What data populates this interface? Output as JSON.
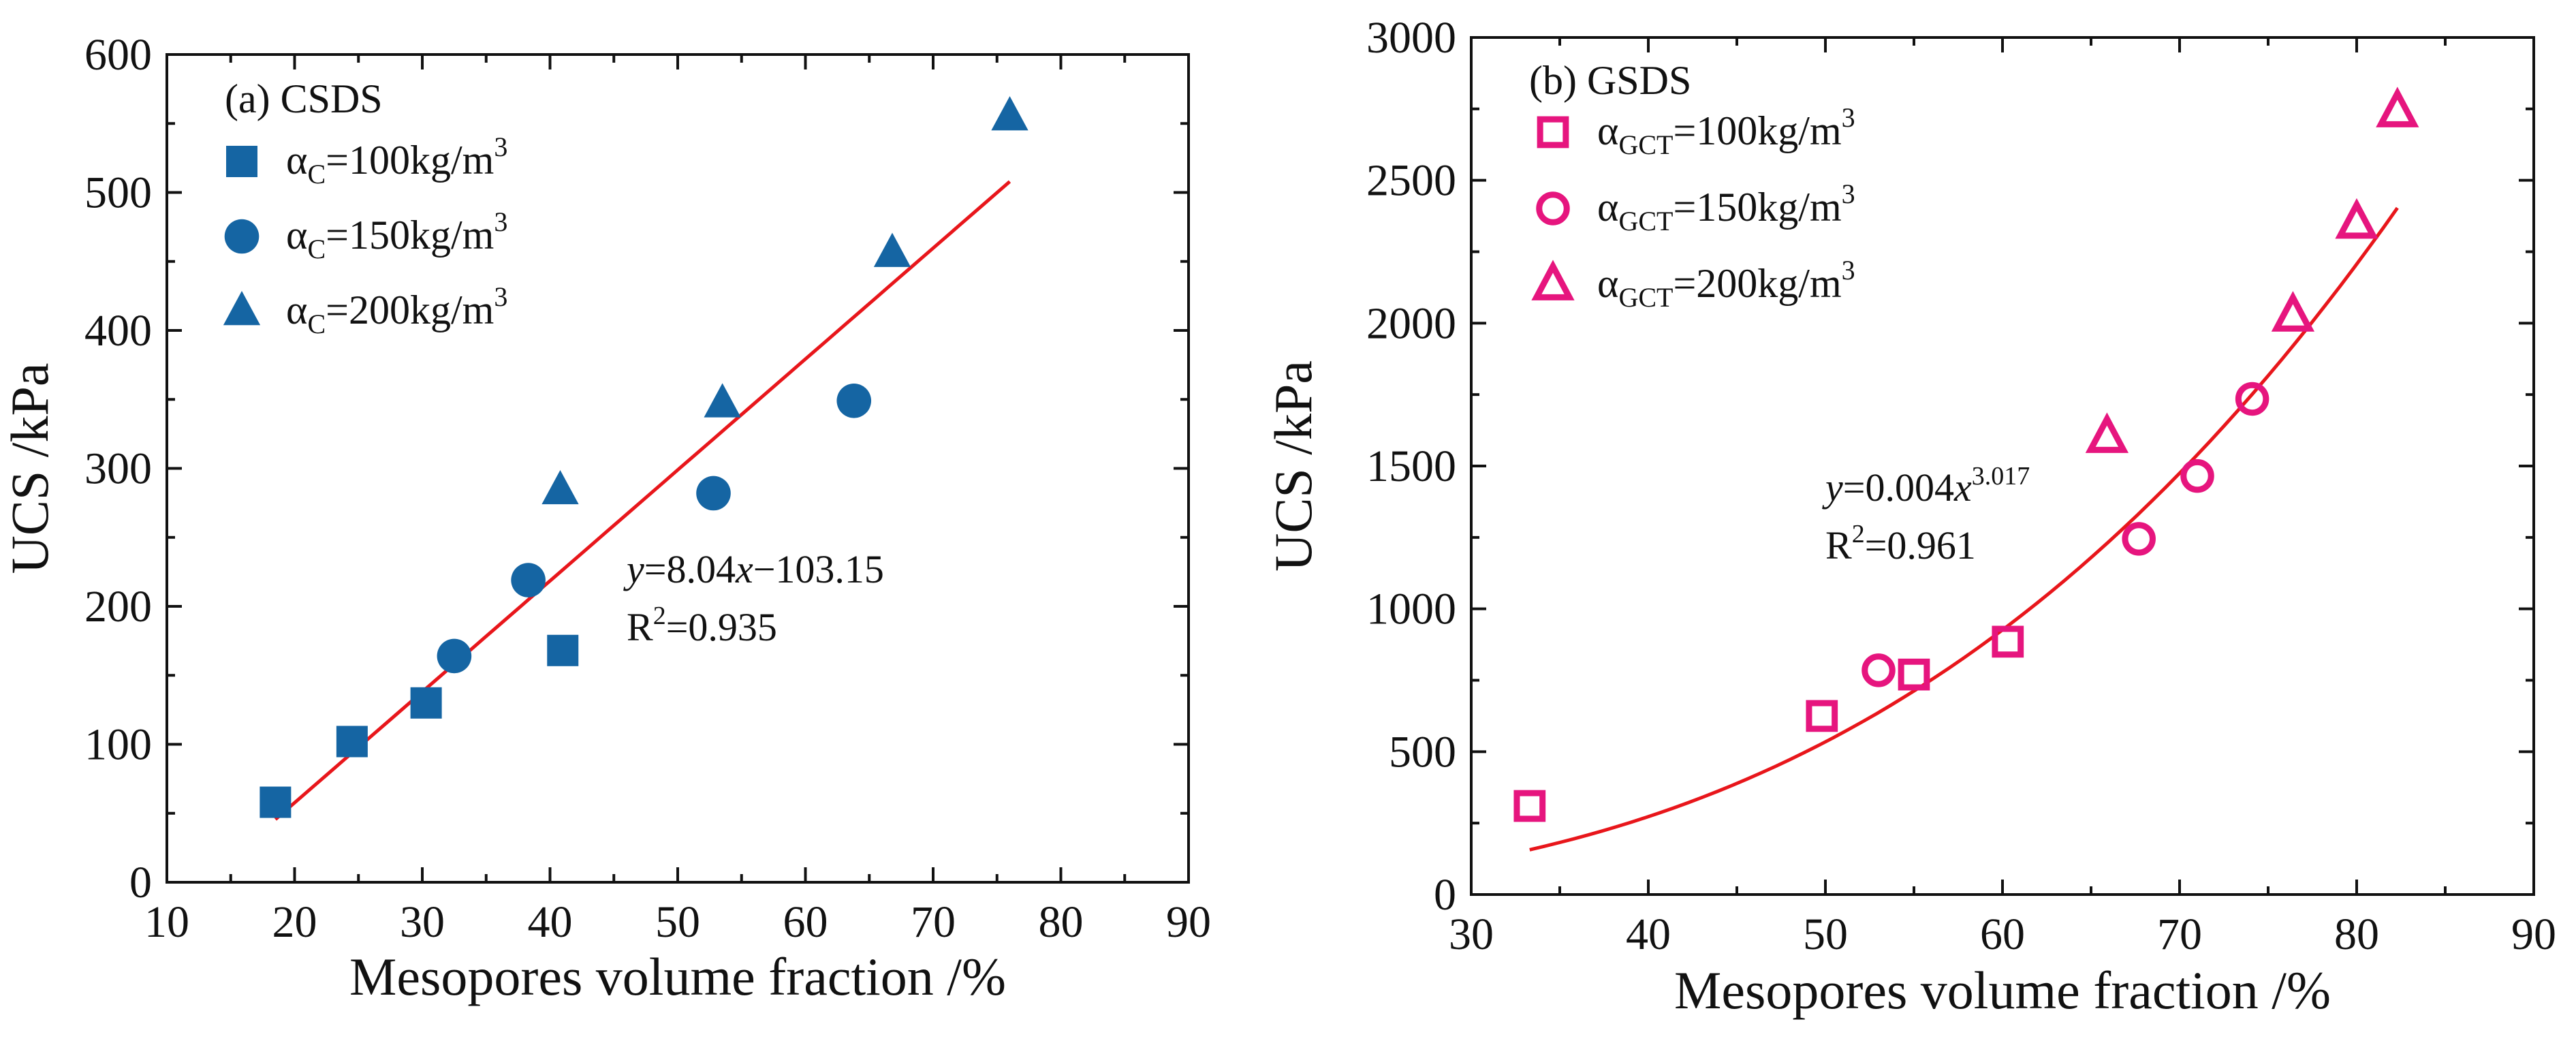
{
  "chart_data": [
    {
      "id": "a",
      "type": "scatter",
      "panel_label": "(a) CSDS",
      "xlabel": "Mesopores volume fraction /%",
      "ylabel": "UCS /kPa",
      "xlim": [
        10,
        90
      ],
      "ylim": [
        0,
        600
      ],
      "xticks": [
        10,
        20,
        30,
        40,
        50,
        60,
        70,
        80,
        90
      ],
      "yticks": [
        0,
        100,
        200,
        300,
        400,
        500,
        600
      ],
      "marker_color": "#1565A3",
      "fit_color": "#E8161B",
      "legend_position": "top-left",
      "series": [
        {
          "name": "αC=100kg/m3",
          "alpha_symbol": "α",
          "subscript": "C",
          "value_text": "=100kg/m",
          "superscript": "3",
          "marker": "square",
          "points": [
            [
              18.5,
              58
            ],
            [
              24.5,
              102
            ],
            [
              30.3,
              130
            ],
            [
              41.0,
              168
            ]
          ]
        },
        {
          "name": "αC=150kg/m3",
          "alpha_symbol": "α",
          "subscript": "C",
          "value_text": "=150kg/m",
          "superscript": "3",
          "marker": "circle",
          "points": [
            [
              32.5,
              164
            ],
            [
              38.3,
              219
            ],
            [
              52.8,
              282
            ],
            [
              63.8,
              349
            ]
          ]
        },
        {
          "name": "αC=200kg/m3",
          "alpha_symbol": "α",
          "subscript": "C",
          "value_text": "=200kg/m",
          "superscript": "3",
          "marker": "triangle",
          "points": [
            [
              40.8,
              284
            ],
            [
              53.5,
              347
            ],
            [
              66.8,
              456
            ],
            [
              76.0,
              555
            ]
          ]
        }
      ],
      "fit": {
        "kind": "linear",
        "a": 8.04,
        "b": -103.15,
        "x_range": [
          18.5,
          76.0
        ]
      },
      "annotation": {
        "eq_y": "y",
        "eq_rest1": "=8.04",
        "eq_x": "x",
        "eq_rest2": "−103.15",
        "r2_R": "R",
        "r2_sup": "2",
        "r2_rest": "=0.935"
      }
    },
    {
      "id": "b",
      "type": "scatter",
      "panel_label": "(b) GSDS",
      "xlabel": "Mesopores volume fraction /%",
      "ylabel": "UCS /kPa",
      "xlim": [
        30,
        90
      ],
      "ylim": [
        0,
        3000
      ],
      "xticks": [
        30,
        40,
        50,
        60,
        70,
        80,
        90
      ],
      "yticks": [
        0,
        500,
        1000,
        1500,
        2000,
        2500,
        3000
      ],
      "marker_color": "#E6157E",
      "fit_color": "#E8161B",
      "legend_position": "top-left",
      "series": [
        {
          "name": "αGCT=100kg/m3",
          "alpha_symbol": "α",
          "subscript": "GCT",
          "value_text": "=100kg/m",
          "superscript": "3",
          "marker": "square-open",
          "points": [
            [
              33.3,
              310
            ],
            [
              49.8,
              625
            ],
            [
              55.0,
              770
            ],
            [
              60.3,
              885
            ]
          ]
        },
        {
          "name": "αGCT=150kg/m3",
          "alpha_symbol": "α",
          "subscript": "GCT",
          "value_text": "=150kg/m",
          "superscript": "3",
          "marker": "circle-open",
          "points": [
            [
              53.0,
              785
            ],
            [
              67.7,
              1245
            ],
            [
              71.0,
              1465
            ],
            [
              74.1,
              1735
            ]
          ]
        },
        {
          "name": "αGCT=200kg/m3",
          "alpha_symbol": "α",
          "subscript": "GCT",
          "value_text": "=200kg/m",
          "superscript": "3",
          "marker": "triangle-open",
          "points": [
            [
              65.9,
              1600
            ],
            [
              76.4,
              2025
            ],
            [
              80.0,
              2350
            ],
            [
              82.3,
              2740
            ]
          ]
        }
      ],
      "fit": {
        "kind": "power",
        "a": 0.004,
        "b": 3.017,
        "x_range": [
          33.3,
          82.3
        ]
      },
      "annotation": {
        "eq_y": "y",
        "eq_rest1": "=0.004",
        "eq_x": "x",
        "eq_sup": "3.017",
        "r2_R": "R",
        "r2_sup": "2",
        "r2_rest": "=0.961"
      }
    }
  ]
}
